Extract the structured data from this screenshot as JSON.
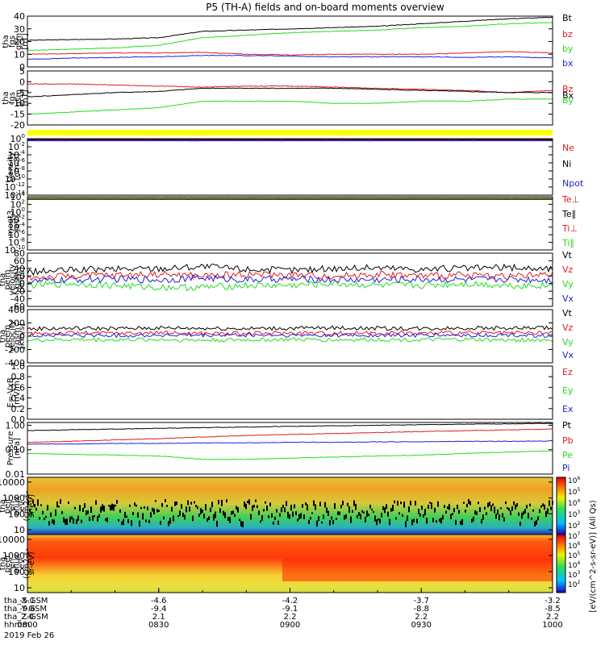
{
  "title": "P5 (TH-A) fields and on-board moments overview",
  "colors": {
    "black": "#000000",
    "red": "#e41a1c",
    "green": "#22dd22",
    "blue": "#1f1fd8",
    "yellow": "#ffff00"
  },
  "chart_data": [
    {
      "type": "line",
      "ylabel": [
        "tha",
        "fgs",
        "gsm",
        "[nT]"
      ],
      "ylim": [
        0,
        40
      ],
      "yticks": [
        "0",
        "10",
        "20",
        "30",
        "40"
      ],
      "series": [
        {
          "name": "Bt",
          "color": "black",
          "values": [
            21,
            21.5,
            22,
            23,
            28,
            29,
            30,
            31,
            32,
            34,
            36,
            38,
            39
          ]
        },
        {
          "name": "bz",
          "color": "red",
          "values": [
            10,
            10.5,
            11,
            11,
            11.5,
            10,
            9.5,
            10,
            10,
            10,
            11,
            12,
            11
          ]
        },
        {
          "name": "by",
          "color": "green",
          "values": [
            13,
            14,
            15,
            17,
            23,
            25,
            27,
            28,
            29,
            31,
            32,
            34,
            35
          ]
        },
        {
          "name": "bx",
          "color": "blue",
          "values": [
            6,
            7,
            7.5,
            8,
            9,
            9,
            8.5,
            8,
            8,
            8,
            7.5,
            8,
            7
          ]
        }
      ]
    },
    {
      "type": "line",
      "ylabel": [
        "tha",
        "fgs",
        "gsm",
        "[nT]"
      ],
      "ylim": [
        -20,
        5
      ],
      "yticks": [
        "-20",
        "-15",
        "-10",
        "-5",
        "0",
        "5"
      ],
      "series": [
        {
          "name": "Bz",
          "color": "red",
          "values": [
            -1,
            -1,
            -1.5,
            -2,
            -2.5,
            -2,
            -2,
            -2.5,
            -3,
            -3.5,
            -4,
            -5,
            -4
          ]
        },
        {
          "name": "Bx",
          "color": "black",
          "values": [
            -7,
            -6,
            -5,
            -4.5,
            -3,
            -3,
            -3,
            -3,
            -3.5,
            -4,
            -4.5,
            -5,
            -5
          ]
        },
        {
          "name": "By",
          "color": "green",
          "values": [
            -15,
            -14,
            -13,
            -12,
            -9,
            -9,
            -9,
            -10,
            -10,
            -9,
            -9,
            -8,
            -8
          ]
        }
      ]
    },
    {
      "type": "line",
      "scale": "log",
      "ylabel": [
        "Density",
        "[cm-3]"
      ],
      "ylim": [
        1e-14,
        1
      ],
      "yticks": [
        "10^-14",
        "10^-12",
        "10^-10",
        "10^-8",
        "10^-6",
        "10^-4",
        "10^-2",
        "10^0"
      ],
      "series": [
        {
          "name": "Ne",
          "color": "red",
          "values": [
            0.7,
            0.7,
            0.7,
            0.7,
            0.7,
            0.7,
            0.7,
            0.7,
            0.7,
            0.7,
            0.7,
            0.7,
            0.7
          ]
        },
        {
          "name": "Ni",
          "color": "black",
          "values": [
            0.5,
            0.5,
            0.5,
            0.5,
            0.5,
            0.5,
            0.5,
            0.5,
            0.5,
            0.5,
            0.5,
            0.5,
            0.5
          ]
        },
        {
          "name": "Npot",
          "color": "blue",
          "values": [
            0.3,
            0.3,
            0.3,
            0.3,
            0.3,
            0.3,
            0.3,
            0.3,
            0.3,
            0.3,
            0.3,
            0.3,
            0.3
          ]
        }
      ]
    },
    {
      "type": "line",
      "scale": "log",
      "ylabel": [
        "moqt3",
        "[eV]"
      ],
      "ylim": [
        1e-10,
        10000.0
      ],
      "yticks": [
        "10^-10",
        "10^-8",
        "10^-6",
        "10^-4",
        "10^-2",
        "10^0",
        "10^2",
        "10^4"
      ],
      "series": [
        {
          "name": "Te⊥",
          "color": "red",
          "values": [
            3000,
            3000,
            3000,
            3000,
            3000,
            3000,
            3000,
            3000,
            3000,
            3000,
            3000,
            3000,
            3000
          ]
        },
        {
          "name": "Te∥",
          "color": "black",
          "values": [
            2000,
            2000,
            2000,
            2000,
            2000,
            2000,
            2000,
            2000,
            2000,
            2000,
            2000,
            2000,
            2000
          ]
        },
        {
          "name": "Ti⊥",
          "color": "red",
          "values": [
            5000,
            5000,
            5000,
            5000,
            5000,
            5000,
            5000,
            5000,
            5000,
            5000,
            5000,
            5000,
            5000
          ]
        },
        {
          "name": "Ti∥",
          "color": "green",
          "values": [
            4000,
            4000,
            4000,
            4000,
            4000,
            4000,
            4000,
            4000,
            4000,
            4000,
            4000,
            4000,
            4000
          ]
        }
      ]
    },
    {
      "type": "line",
      "ylabel": [
        "tha",
        "peim",
        "velocity",
        "gsm",
        "[km/s]"
      ],
      "ylim": [
        -60,
        80
      ],
      "yticks": [
        "-60",
        "-40",
        "-20",
        "0",
        "20",
        "40",
        "60",
        "80"
      ],
      "series": [
        {
          "name": "Vt",
          "color": "black",
          "values": [
            30,
            35,
            38,
            40,
            45,
            38,
            35,
            40,
            42,
            38,
            40,
            42,
            38
          ]
        },
        {
          "name": "Vz",
          "color": "red",
          "values": [
            15,
            20,
            22,
            25,
            20,
            25,
            22,
            20,
            25,
            20,
            22,
            20,
            22
          ]
        },
        {
          "name": "Vy",
          "color": "green",
          "values": [
            -5,
            0,
            -5,
            -10,
            -10,
            -5,
            -5,
            0,
            -5,
            -5,
            0,
            -5,
            -5
          ]
        },
        {
          "name": "Vx",
          "color": "blue",
          "values": [
            5,
            10,
            12,
            10,
            15,
            10,
            12,
            10,
            10,
            12,
            10,
            12,
            10
          ]
        }
      ]
    },
    {
      "type": "line",
      "ylabel": [
        "tha",
        "peem",
        "velocity",
        "gsm",
        "[km/s]"
      ],
      "ylim": [
        -400,
        400
      ],
      "yticks": [
        "-400",
        "-200",
        "0",
        "200",
        "400"
      ],
      "series": [
        {
          "name": "Vt",
          "color": "black",
          "values": [
            110,
            120,
            115,
            125,
            120,
            115,
            120,
            125,
            120,
            115,
            125,
            120,
            130
          ]
        },
        {
          "name": "Vz",
          "color": "red",
          "values": [
            40,
            50,
            45,
            50,
            45,
            40,
            50,
            45,
            50,
            45,
            50,
            45,
            50
          ]
        },
        {
          "name": "Vy",
          "color": "green",
          "values": [
            -60,
            -50,
            -55,
            -50,
            -60,
            -55,
            -50,
            -55,
            -50,
            -55,
            -50,
            -60,
            -55
          ]
        },
        {
          "name": "Vx",
          "color": "blue",
          "values": [
            10,
            15,
            10,
            15,
            10,
            15,
            10,
            15,
            10,
            15,
            10,
            15,
            10
          ]
        }
      ]
    },
    {
      "type": "line",
      "ylabel": [
        "E=-VxB",
        "[mV/m]"
      ],
      "ylim": [
        0,
        1
      ],
      "yticks": [
        "0.0",
        "0.2",
        "0.4",
        "0.6",
        "0.8",
        "1.0"
      ],
      "series": [
        {
          "name": "Ez",
          "color": "red",
          "values": []
        },
        {
          "name": "Ey",
          "color": "green",
          "values": []
        },
        {
          "name": "Ex",
          "color": "blue",
          "values": []
        }
      ]
    },
    {
      "type": "line",
      "scale": "log",
      "ylabel": [
        "Pressure",
        "[nPa]"
      ],
      "ylim": [
        0.01,
        1.3
      ],
      "yticks": [
        "0.01",
        "0.10",
        "1.00"
      ],
      "series": [
        {
          "name": "Pt",
          "color": "black",
          "values": [
            0.6,
            0.65,
            0.7,
            0.75,
            0.8,
            0.85,
            0.9,
            0.95,
            1.0,
            1.05,
            1.1,
            1.15,
            1.2
          ]
        },
        {
          "name": "Pb",
          "color": "red",
          "values": [
            0.2,
            0.22,
            0.25,
            0.28,
            0.33,
            0.38,
            0.42,
            0.46,
            0.5,
            0.55,
            0.6,
            0.65,
            0.7
          ]
        },
        {
          "name": "Pe",
          "color": "green",
          "values": [
            0.07,
            0.065,
            0.06,
            0.055,
            0.04,
            0.04,
            0.045,
            0.05,
            0.055,
            0.06,
            0.07,
            0.08,
            0.09
          ]
        },
        {
          "name": "Pi",
          "color": "blue",
          "values": [
            0.17,
            0.17,
            0.18,
            0.18,
            0.19,
            0.19,
            0.2,
            0.2,
            0.21,
            0.21,
            0.22,
            0.22,
            0.23
          ]
        }
      ]
    },
    {
      "type": "heatmap",
      "scale": "log",
      "ylabel": [
        "tha",
        "peir",
        "en",
        "eflux",
        "eV",
        "(cm2-s-",
        "sr-eV)"
      ],
      "ylim": [
        5,
        20000
      ],
      "yticks": [
        "10",
        "100",
        "1000",
        "10000"
      ],
      "colorbar_ticks": [
        "10^2",
        "10^3",
        "10^4",
        "10^5",
        "10^6"
      ]
    },
    {
      "type": "heatmap",
      "scale": "log",
      "ylabel": [
        "tha",
        "peer",
        "en",
        "eflux",
        "eV",
        "(cm2-s-",
        "sr-eV)"
      ],
      "ylim": [
        5,
        20000
      ],
      "yticks": [
        "10",
        "100",
        "1000",
        "10000"
      ],
      "colorbar_ticks": [
        "10^2",
        "10^3",
        "10^4",
        "10^5",
        "10^6",
        "10^7"
      ]
    }
  ],
  "colorbar": {
    "label": "[eV/(cm^2-s-sr-eV)] (All Qs)",
    "label_overlay": "[eV/(cm^2-s-sr-eV)]"
  },
  "xaxis": {
    "rows": [
      {
        "label": "tha_X-GSM",
        "values": [
          "-5.1",
          "-4.6",
          "-4.2",
          "-3.7",
          "-3.2"
        ]
      },
      {
        "label": "tha_Y-GSM",
        "values": [
          "-9.6",
          "-9.4",
          "-9.1",
          "-8.8",
          "-8.5"
        ]
      },
      {
        "label": "tha_Z-GSM",
        "values": [
          "2.0",
          "2.1",
          "2.2",
          "2.2",
          "2.2"
        ]
      },
      {
        "label": "hhmm",
        "values": [
          "0800",
          "0830",
          "0900",
          "0930",
          "1000"
        ]
      }
    ],
    "date": "2019 Feb 26"
  }
}
